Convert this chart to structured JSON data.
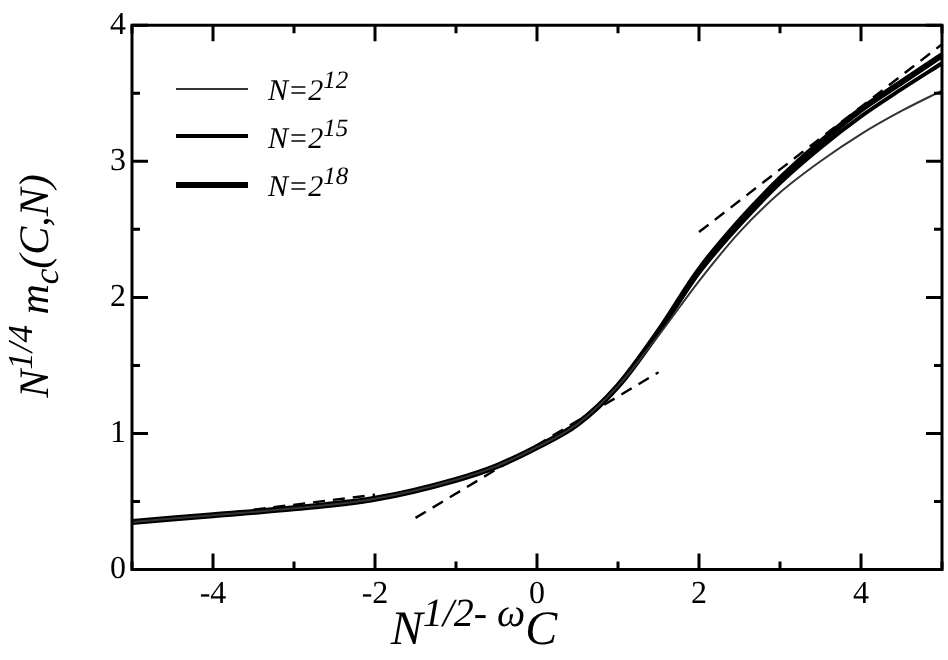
{
  "chart_data": {
    "type": "line",
    "xlabel": "N$^{1/2- ω}$C",
    "ylabel": "N$^{1/4}$ m$_{c}$(C,N)",
    "xlim": [
      -5,
      5
    ],
    "xticks": [
      {
        "value": -5,
        "label": null
      },
      -4,
      {
        "value": -3,
        "label": null
      },
      -2,
      {
        "value": -1,
        "label": null
      },
      0,
      {
        "value": 1,
        "label": null
      },
      2,
      {
        "value": 3,
        "label": null
      },
      4,
      {
        "value": 5,
        "label": null
      }
    ],
    "ylim": [
      0,
      4
    ],
    "yticks": [
      0,
      {
        "value": 0.5,
        "label": null
      },
      1,
      {
        "value": 1.5,
        "label": null
      },
      2,
      {
        "value": 2.5,
        "label": null
      },
      3,
      {
        "value": 3.5,
        "label": null
      },
      4
    ],
    "grid": false,
    "legend": "top left",
    "marker": "none",
    "series": [
      {
        "name": "N=2$^{12}$",
        "color": "#333333",
        "x": [
          -5,
          -4,
          -3,
          -2,
          -1,
          -0.5,
          0,
          0.5,
          1,
          1.5,
          2,
          2.5,
          3,
          3.5,
          4,
          4.5,
          5
        ],
        "values": [
          0.35,
          0.4,
          0.45,
          0.52,
          0.66,
          0.76,
          0.9,
          1.07,
          1.35,
          1.72,
          2.12,
          2.48,
          2.77,
          3.0,
          3.2,
          3.37,
          3.52
        ]
      },
      {
        "name": "N=2$^{15}$",
        "color": "#000000",
        "x": [
          -5,
          -4,
          -3,
          -2,
          -1,
          -0.5,
          0,
          0.5,
          1,
          1.5,
          2,
          2.5,
          3,
          3.5,
          4,
          4.5,
          5
        ],
        "values": [
          0.35,
          0.4,
          0.45,
          0.52,
          0.66,
          0.76,
          0.9,
          1.07,
          1.35,
          1.74,
          2.18,
          2.53,
          2.84,
          3.1,
          3.33,
          3.53,
          3.72
        ]
      },
      {
        "name": "N=2$^{18}$",
        "color": "#000000",
        "x": [
          -5,
          -4,
          -3,
          -2,
          -1,
          -0.5,
          0,
          0.5,
          1,
          1.5,
          2,
          2.5,
          3,
          3.5,
          4,
          4.5,
          5
        ],
        "values": [
          0.35,
          0.4,
          0.45,
          0.52,
          0.66,
          0.76,
          0.9,
          1.07,
          1.35,
          1.75,
          2.2,
          2.56,
          2.87,
          3.14,
          3.38,
          3.58,
          3.78
        ]
      },
      {
        "color": "#000000",
        "line_style": "dashed",
        "x": [
          -3.5,
          -2
        ],
        "values": [
          0.44,
          0.55
        ]
      },
      {
        "color": "#000000",
        "line_style": "dashed",
        "x": [
          -1.5,
          1.5
        ],
        "values": [
          0.38,
          1.45
        ]
      },
      {
        "color": "#000000",
        "line_style": "dashed",
        "x": [
          2,
          5
        ],
        "values": [
          2.48,
          3.86
        ]
      }
    ]
  }
}
